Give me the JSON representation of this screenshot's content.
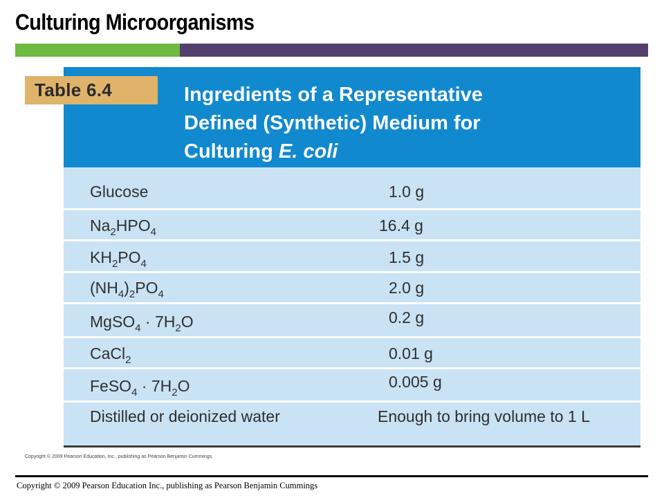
{
  "slide_title": "Culturing Microorganisms",
  "table": {
    "tag": "Table 6.4",
    "heading_line1": "Ingredients of a Representative",
    "heading_line2": "Defined (Synthetic) Medium for",
    "heading_line3_prefix": "Culturing ",
    "heading_line3_italic": "E. coli",
    "rows": [
      {
        "name": "Glucose",
        "amount": "1.0 g"
      },
      {
        "name_parts": [
          "Na",
          "2",
          "HPO",
          "4"
        ],
        "amount": "16.4 g"
      },
      {
        "name_parts": [
          "KH",
          "2",
          "PO",
          "4"
        ],
        "amount": "1.5 g"
      },
      {
        "name_parts": [
          "(NH",
          "4",
          ")",
          "2",
          "PO",
          "4"
        ],
        "amount": "2.0 g"
      },
      {
        "name_parts": [
          "MgSO",
          "4",
          " · 7H",
          "2",
          "O"
        ],
        "amount": "0.2 g"
      },
      {
        "name_parts": [
          "CaCl",
          "2"
        ],
        "amount": "0.01 g"
      },
      {
        "name_parts": [
          "FeSO",
          "4",
          " · 7H",
          "2",
          "O"
        ],
        "amount": "0.005 g"
      },
      {
        "name": "Distilled or deionized water",
        "amount": "Enough to bring volume to 1 L"
      }
    ]
  },
  "image_copyright": "Copyright © 2009 Pearson Education, Inc., publishing as Pearson Benjamin Cummings.",
  "footer_copyright": "Copyright © 2009 Pearson Education Inc., publishing as Pearson Benjamin Cummings",
  "colors": {
    "header_blue": "#1189cf",
    "row_blue": "#c9e2f4",
    "tag_gold": "#dfb36a",
    "bar_green": "#6dbb3f",
    "bar_purple": "#54406e"
  }
}
